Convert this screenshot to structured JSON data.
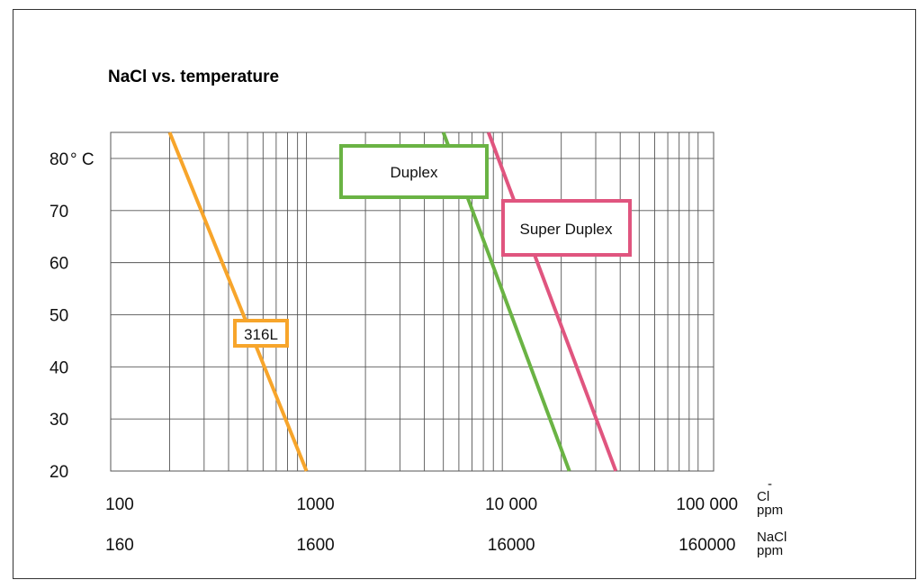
{
  "chart_data": {
    "type": "line",
    "title": "NaCl vs. temperature",
    "x_scale": "log",
    "y_scale": "linear",
    "grid": true,
    "xlim": [
      100,
      120000
    ],
    "ylim": [
      20,
      85
    ],
    "y_ticks": [
      "20",
      "30",
      "40",
      "50",
      "60",
      "70",
      "80"
    ],
    "y_unit": "° C",
    "x_ticks_cl": [
      "100",
      "1000",
      "10 000",
      "100 000"
    ],
    "x_ticks_nacl": [
      "160",
      "1600",
      "16000",
      "160000"
    ],
    "x_label_cl": "Cl",
    "x_label_cl_superscript": "-",
    "x_label_cl_unit": "ppm",
    "x_label_nacl": "NaCl",
    "x_label_nacl_unit": "ppm",
    "series": [
      {
        "name": "316L",
        "color": "#f7a52b",
        "points": [
          {
            "x": 200,
            "y": 85
          },
          {
            "x": 1000,
            "y": 20
          }
        ]
      },
      {
        "name": "Duplex",
        "color": "#6ab344",
        "points": [
          {
            "x": 5000,
            "y": 85
          },
          {
            "x": 22000,
            "y": 20
          }
        ]
      },
      {
        "name": "Super Duplex",
        "color": "#e0557f",
        "points": [
          {
            "x": 8500,
            "y": 85
          },
          {
            "x": 38000,
            "y": 20
          }
        ]
      }
    ]
  }
}
